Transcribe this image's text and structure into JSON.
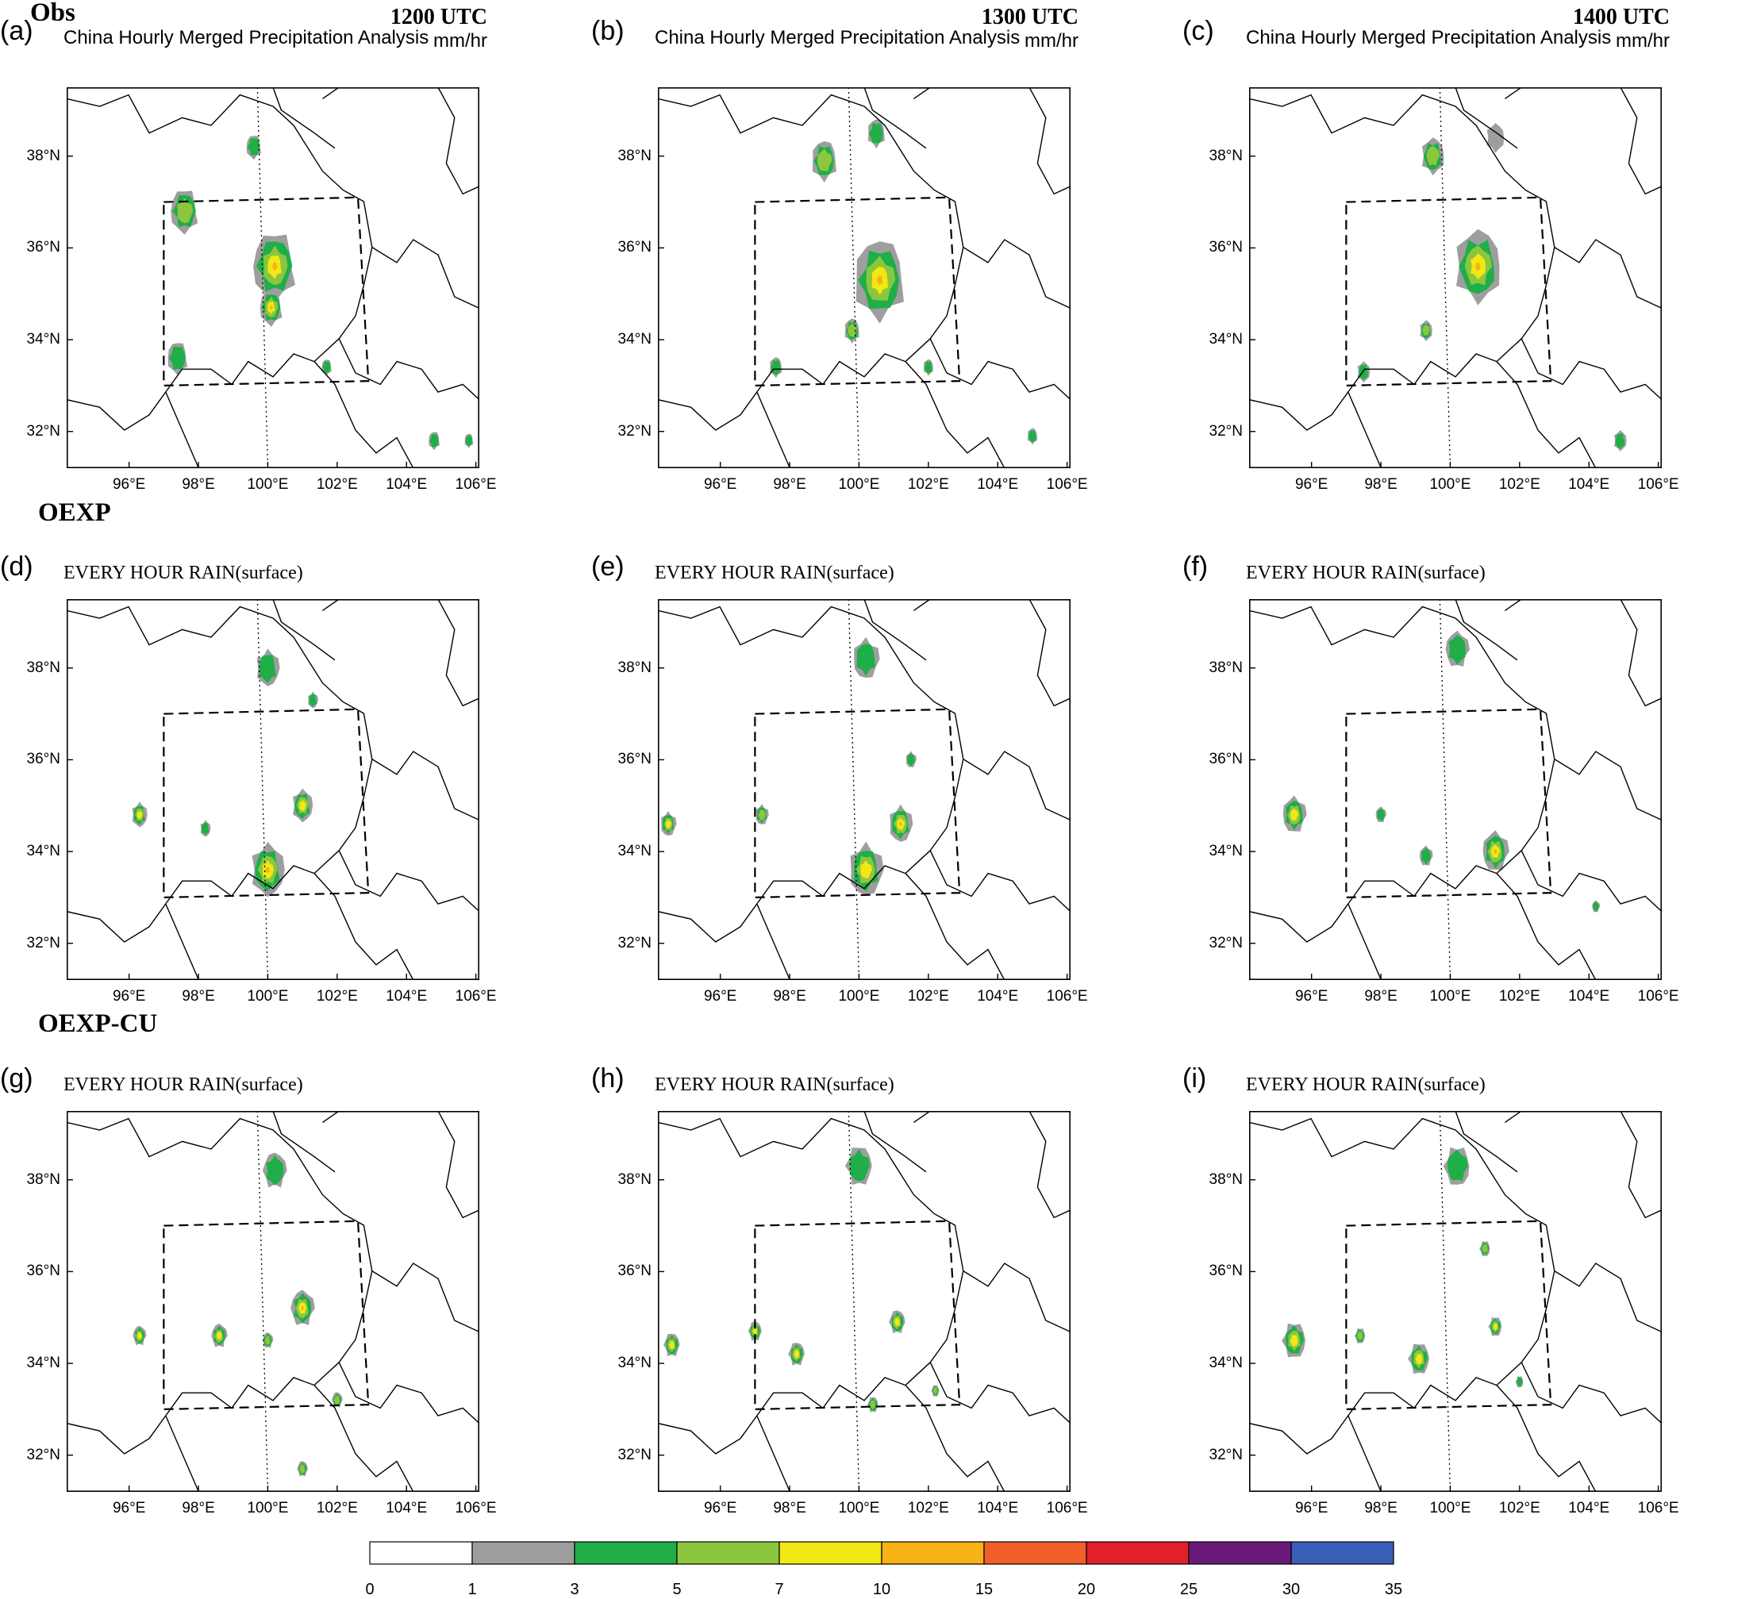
{
  "row_titles": [
    "Obs",
    "OEXP",
    "OEXP-CU"
  ],
  "panels": [
    {
      "label": "(a)",
      "title": "China Hourly Merged Precipitation Analysis",
      "time": "1200 UTC",
      "units": "mm/hr"
    },
    {
      "label": "(b)",
      "title": "China Hourly Merged Precipitation Analysis",
      "time": "1300 UTC",
      "units": "mm/hr"
    },
    {
      "label": "(c)",
      "title": "China Hourly Merged Precipitation Analysis",
      "time": "1400 UTC",
      "units": "mm/hr"
    },
    {
      "label": "(d)",
      "title": "EVERY HOUR RAIN(surface)"
    },
    {
      "label": "(e)",
      "title": "EVERY HOUR RAIN(surface)"
    },
    {
      "label": "(f)",
      "title": "EVERY HOUR RAIN(surface)"
    },
    {
      "label": "(g)",
      "title": "EVERY HOUR RAIN(surface)"
    },
    {
      "label": "(h)",
      "title": "EVERY HOUR RAIN(surface)"
    },
    {
      "label": "(i)",
      "title": "EVERY HOUR RAIN(surface)"
    }
  ],
  "lat_ticks": [
    "32°N",
    "34°N",
    "36°N",
    "38°N"
  ],
  "lon_ticks": [
    "96°E",
    "98°E",
    "100°E",
    "102°E",
    "104°E",
    "106°E"
  ],
  "colorbar": {
    "levels": [
      "0",
      "1",
      "3",
      "5",
      "7",
      "10",
      "15",
      "20",
      "25",
      "30",
      "35"
    ],
    "colors": [
      "#ffffff",
      "#9e9e9e",
      "#1fae48",
      "#8cc63f",
      "#f2e814",
      "#f7b215",
      "#f1602a",
      "#e0202a",
      "#6a1b7a",
      "#3a5fb8"
    ]
  },
  "map_colors": {
    "border": "#000000",
    "box": "#000000"
  }
}
